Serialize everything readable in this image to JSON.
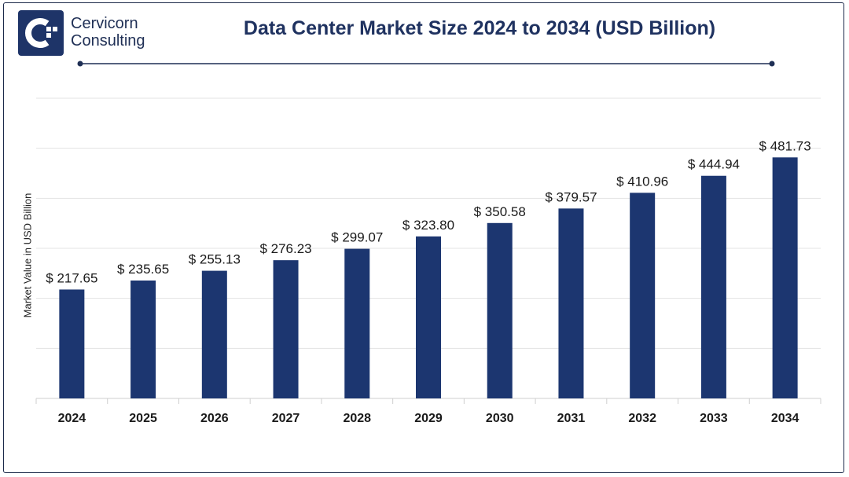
{
  "brand": {
    "line1": "Cervicorn",
    "line2": "Consulting",
    "color": "#1e3468"
  },
  "chart_data": {
    "type": "bar",
    "title": "Data Center Market Size 2024 to 2034 (USD Billion)",
    "xlabel": "",
    "ylabel": "Market Value in USD Billion",
    "categories": [
      "2024",
      "2025",
      "2026",
      "2027",
      "2028",
      "2029",
      "2030",
      "2031",
      "2032",
      "2033",
      "2034"
    ],
    "values": [
      217.65,
      235.65,
      255.13,
      276.23,
      299.07,
      323.8,
      350.58,
      379.57,
      410.96,
      444.94,
      481.73
    ],
    "value_labels": [
      "$ 217.65",
      "$ 235.65",
      "$ 255.13",
      "$ 276.23",
      "$ 299.07",
      "$ 323.80",
      "$ 350.58",
      "$ 379.57",
      "$ 410.96",
      "$ 444.94",
      "$ 481.73"
    ],
    "ylim": [
      0,
      600
    ],
    "grid": true,
    "bar_color": "#1c3670",
    "grid_color": "#e3e3e3"
  }
}
